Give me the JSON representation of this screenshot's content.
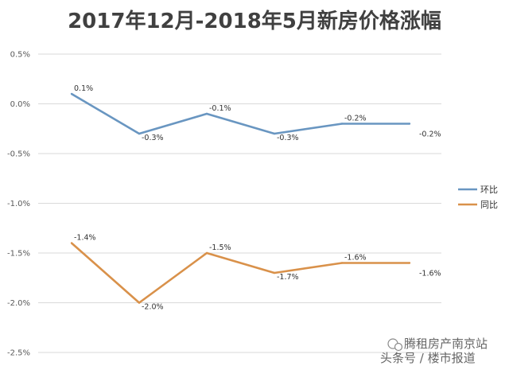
{
  "chart_data": {
    "type": "line",
    "title": "2017年12月-2018年5月新房价格涨幅",
    "x": [
      "",
      "",
      "",
      "",
      "",
      ""
    ],
    "ylim": [
      -2.5,
      0.5
    ],
    "yticks": [
      0.5,
      0.0,
      -0.5,
      -1.0,
      -1.5,
      -2.0,
      -2.5
    ],
    "ytick_labels": [
      "0.5%",
      "0.0%",
      "-0.5%",
      "-1.0%",
      "-1.5%",
      "-2.0%",
      "-2.5%"
    ],
    "grid": true,
    "legend_position": "right",
    "series": [
      {
        "name": "环比",
        "color": "#6996c1",
        "values": [
          0.1,
          -0.3,
          -0.1,
          -0.3,
          -0.2,
          -0.2
        ],
        "labels": [
          "0.1%",
          "-0.3%",
          "-0.1%",
          "-0.3%",
          "-0.2%",
          "-0.2%"
        ]
      },
      {
        "name": "同比",
        "color": "#d9914a",
        "values": [
          -1.4,
          -2.0,
          -1.5,
          -1.7,
          -1.6,
          -1.6
        ],
        "labels": [
          "-1.4%",
          "-2.0%",
          "-1.5%",
          "-1.7%",
          "-1.6%",
          "-1.6%"
        ]
      }
    ]
  },
  "watermark": {
    "line1": "腾租房产南京站",
    "line2": "头条号 / 楼市报道",
    "icon": "wechat-icon"
  }
}
